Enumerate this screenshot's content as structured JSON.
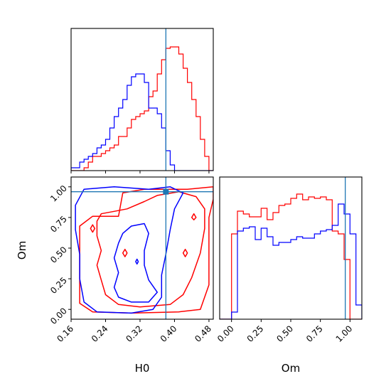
{
  "colors": {
    "series_red": "#ff0000",
    "series_blue": "#0000ff",
    "truth_line": "#1f77b4",
    "axes": "#000000",
    "background": "#ffffff"
  },
  "chart_data": [
    {
      "id": "h0-hist",
      "type": "histogram",
      "title": "",
      "xlabel": "",
      "ylabel": "",
      "xlim": [
        0.16,
        0.49
      ],
      "ylim": [
        0,
        1.0
      ],
      "x_ticks": [
        0.16,
        0.24,
        0.32,
        0.4,
        0.48
      ],
      "x_tick_labels_shown": false,
      "y_ticks_shown": false,
      "bin_edges": [
        0.16,
        0.17,
        0.18,
        0.19,
        0.2,
        0.21,
        0.22,
        0.23,
        0.24,
        0.25,
        0.26,
        0.27,
        0.28,
        0.29,
        0.3,
        0.31,
        0.32,
        0.33,
        0.34,
        0.35,
        0.36,
        0.37,
        0.38,
        0.39,
        0.4,
        0.41,
        0.42,
        0.43,
        0.44,
        0.45,
        0.46,
        0.47,
        0.48,
        0.49
      ],
      "series": [
        {
          "color": "red",
          "values": [
            0.0,
            0.0,
            0.0,
            0.02,
            0.06,
            0.1,
            0.1,
            0.12,
            0.14,
            0.16,
            0.18,
            0.24,
            0.24,
            0.3,
            0.36,
            0.38,
            0.4,
            0.42,
            0.52,
            0.56,
            0.68,
            0.78,
            0.86,
            0.87,
            0.87,
            0.82,
            0.72,
            0.62,
            0.5,
            0.38,
            0.22,
            0.1,
            0.0
          ]
        },
        {
          "color": "blue",
          "values": [
            0.02,
            0.02,
            0.06,
            0.08,
            0.1,
            0.12,
            0.16,
            0.18,
            0.22,
            0.3,
            0.38,
            0.44,
            0.5,
            0.6,
            0.66,
            0.68,
            0.68,
            0.62,
            0.44,
            0.44,
            0.4,
            0.3,
            0.14,
            0.04,
            0.0,
            0.0,
            0.0,
            0.0,
            0.0,
            0.0,
            0.0,
            0.0,
            0.0
          ]
        }
      ],
      "truth_x": 0.38
    },
    {
      "id": "h0-om-contour",
      "type": "contour",
      "title": "",
      "xlabel": "H0",
      "ylabel": "Om",
      "xlim": [
        0.16,
        0.49
      ],
      "ylim": [
        -0.08,
        1.08
      ],
      "x_ticks": [
        0.16,
        0.24,
        0.32,
        0.4,
        0.48
      ],
      "x_tick_labels": [
        "0.16",
        "0.24",
        "0.32",
        "0.40",
        "0.48"
      ],
      "y_ticks": [
        0.0,
        0.25,
        0.5,
        0.75,
        1.0
      ],
      "y_tick_labels": [
        "0.00",
        "0.25",
        "0.50",
        "0.75",
        "1.00"
      ],
      "series": [
        {
          "color": "red",
          "contours": [
            [
              [
                0.29,
                0.82
              ],
              [
                0.26,
                0.8
              ],
              [
                0.23,
                0.78
              ],
              [
                0.22,
                0.72
              ],
              [
                0.22,
                0.6
              ],
              [
                0.23,
                0.48
              ],
              [
                0.22,
                0.36
              ],
              [
                0.23,
                0.24
              ],
              [
                0.24,
                0.12
              ],
              [
                0.27,
                0.04
              ],
              [
                0.32,
                0.02
              ],
              [
                0.39,
                0.04
              ],
              [
                0.42,
                0.12
              ],
              [
                0.44,
                0.26
              ],
              [
                0.46,
                0.46
              ],
              [
                0.47,
                0.66
              ],
              [
                0.47,
                0.82
              ],
              [
                0.45,
                0.92
              ],
              [
                0.41,
                0.96
              ],
              [
                0.36,
                0.93
              ],
              [
                0.33,
                0.88
              ],
              [
                0.29,
                0.82
              ]
            ],
            [
              [
                0.27,
                0.76
              ],
              [
                0.28,
                0.95
              ],
              [
                0.33,
                0.98
              ],
              [
                0.43,
                0.98
              ],
              [
                0.49,
                1.0
              ],
              [
                0.49,
                0.9
              ],
              [
                0.48,
                0.75
              ],
              [
                0.48,
                0.45
              ],
              [
                0.48,
                0.2
              ],
              [
                0.46,
                0.0
              ],
              [
                0.41,
                -0.02
              ],
              [
                0.3,
                -0.03
              ],
              [
                0.21,
                -0.02
              ],
              [
                0.18,
                0.05
              ],
              [
                0.18,
                0.3
              ],
              [
                0.18,
                0.5
              ],
              [
                0.18,
                0.68
              ],
              [
                0.21,
                0.76
              ],
              [
                0.27,
                0.76
              ]
            ],
            [
              [
                0.205,
                0.66
              ],
              [
                0.21,
                0.63
              ],
              [
                0.215,
                0.66
              ],
              [
                0.21,
                0.69
              ],
              [
                0.205,
                0.66
              ]
            ],
            [
              [
                0.28,
                0.46
              ],
              [
                0.285,
                0.43
              ],
              [
                0.29,
                0.46
              ],
              [
                0.285,
                0.49
              ],
              [
                0.28,
                0.46
              ]
            ],
            [
              [
                0.42,
                0.46
              ],
              [
                0.425,
                0.43
              ],
              [
                0.43,
                0.46
              ],
              [
                0.425,
                0.49
              ],
              [
                0.42,
                0.46
              ]
            ],
            [
              [
                0.44,
                0.75
              ],
              [
                0.445,
                0.73
              ],
              [
                0.45,
                0.75
              ],
              [
                0.445,
                0.78
              ],
              [
                0.44,
                0.75
              ]
            ]
          ]
        },
        {
          "color": "blue",
          "contours": [
            [
              [
                0.28,
                0.62
              ],
              [
                0.3,
                0.68
              ],
              [
                0.33,
                0.7
              ],
              [
                0.34,
                0.62
              ],
              [
                0.33,
                0.48
              ],
              [
                0.33,
                0.36
              ],
              [
                0.34,
                0.24
              ],
              [
                0.36,
                0.14
              ],
              [
                0.34,
                0.06
              ],
              [
                0.3,
                0.06
              ],
              [
                0.27,
                0.1
              ],
              [
                0.26,
                0.18
              ],
              [
                0.27,
                0.3
              ],
              [
                0.26,
                0.42
              ],
              [
                0.27,
                0.54
              ],
              [
                0.28,
                0.62
              ]
            ],
            [
              [
                0.17,
                0.85
              ],
              [
                0.19,
                0.98
              ],
              [
                0.26,
                1.0
              ],
              [
                0.34,
                0.98
              ],
              [
                0.39,
                1.0
              ],
              [
                0.42,
                0.95
              ],
              [
                0.4,
                0.82
              ],
              [
                0.39,
                0.65
              ],
              [
                0.38,
                0.45
              ],
              [
                0.37,
                0.28
              ],
              [
                0.37,
                0.1
              ],
              [
                0.35,
                0.0
              ],
              [
                0.3,
                -0.03
              ],
              [
                0.22,
                -0.02
              ],
              [
                0.19,
                0.06
              ],
              [
                0.18,
                0.25
              ],
              [
                0.18,
                0.45
              ],
              [
                0.17,
                0.65
              ],
              [
                0.17,
                0.85
              ]
            ],
            [
              [
                0.31,
                0.39
              ],
              [
                0.313,
                0.37
              ],
              [
                0.316,
                0.39
              ],
              [
                0.313,
                0.41
              ],
              [
                0.31,
                0.39
              ]
            ]
          ]
        }
      ],
      "truth_x": 0.38,
      "truth_y": 0.96
    },
    {
      "id": "om-hist",
      "type": "histogram",
      "title": "",
      "xlabel": "Om",
      "ylabel": "",
      "xlim": [
        -0.1,
        1.1
      ],
      "ylim": [
        0,
        1.0
      ],
      "x_ticks": [
        0.0,
        0.25,
        0.5,
        0.75,
        1.0
      ],
      "x_tick_labels": [
        "0.00",
        "0.25",
        "0.50",
        "0.75",
        "1.00"
      ],
      "y_ticks_shown": false,
      "bin_edges": [
        -0.1,
        -0.05,
        0.0,
        0.05,
        0.1,
        0.15,
        0.2,
        0.25,
        0.3,
        0.35,
        0.4,
        0.45,
        0.5,
        0.55,
        0.6,
        0.65,
        0.7,
        0.75,
        0.8,
        0.85,
        0.9,
        0.95,
        1.0,
        1.05,
        1.1
      ],
      "series": [
        {
          "color": "red",
          "values": [
            0.0,
            0.0,
            0.6,
            0.76,
            0.74,
            0.72,
            0.72,
            0.78,
            0.7,
            0.75,
            0.8,
            0.81,
            0.85,
            0.88,
            0.84,
            0.86,
            0.85,
            0.86,
            0.84,
            0.62,
            0.6,
            0.42,
            0.0,
            0.0
          ]
        },
        {
          "color": "blue",
          "values": [
            0.0,
            0.0,
            0.05,
            0.62,
            0.64,
            0.65,
            0.56,
            0.64,
            0.58,
            0.52,
            0.54,
            0.54,
            0.56,
            0.58,
            0.57,
            0.57,
            0.6,
            0.62,
            0.63,
            0.66,
            0.81,
            0.74,
            0.6,
            0.1
          ]
        }
      ],
      "truth_x": 0.96
    }
  ]
}
